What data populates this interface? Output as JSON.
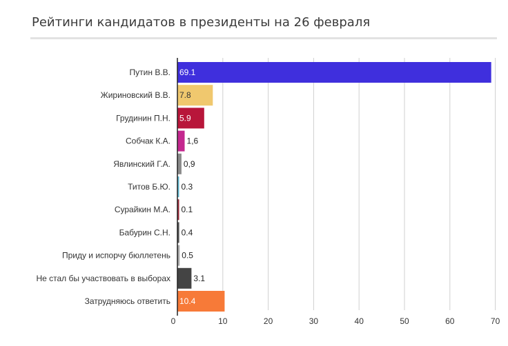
{
  "title": "Рейтинги кандидатов в президенты на 26 февраля",
  "chart_data": {
    "type": "bar",
    "orientation": "horizontal",
    "title": "Рейтинги кандидатов в президенты на 26 февраля",
    "xlabel": "",
    "ylabel": "",
    "xlim": [
      0,
      70
    ],
    "x_ticks": [
      "0",
      "10",
      "20",
      "30",
      "40",
      "50",
      "60",
      "70"
    ],
    "grid": true,
    "legend": "none",
    "categories": [
      "Путин В.В.",
      "Жириновский В.В.",
      "Грудинин П.Н.",
      "Собчак К.А.",
      "Явлинский Г.А.",
      "Титов Б.Ю.",
      "Сурайкин М.А.",
      "Бабурин С.Н.",
      "Приду и испорчу бюллетень",
      "Не стал бы участвовать в выборах",
      "Затрудняюсь ответить"
    ],
    "values": [
      69.1,
      7.8,
      5.9,
      1.6,
      0.9,
      0.3,
      0.1,
      0.4,
      0.5,
      3.1,
      10.4
    ],
    "value_labels": [
      "69.1",
      "7.8",
      "5.9",
      "1,6",
      "0,9",
      "0.3",
      "0.1",
      "0.4",
      "0.5",
      "3.1",
      "10.4"
    ],
    "colors": [
      "#3f2fdd",
      "#f0c86e",
      "#b8163a",
      "#c4288f",
      "#8a8a8a",
      "#5fb7cf",
      "#9e2b3a",
      "#555555",
      "#a9a9a9",
      "#444444",
      "#f77a38"
    ],
    "label_inside": [
      true,
      true,
      true,
      false,
      false,
      false,
      false,
      false,
      false,
      false,
      true
    ],
    "label_color": [
      "#ffffff",
      "#333333",
      "#ffffff",
      "#222222",
      "#222222",
      "#222222",
      "#222222",
      "#222222",
      "#222222",
      "#222222",
      "#ffffff"
    ]
  }
}
